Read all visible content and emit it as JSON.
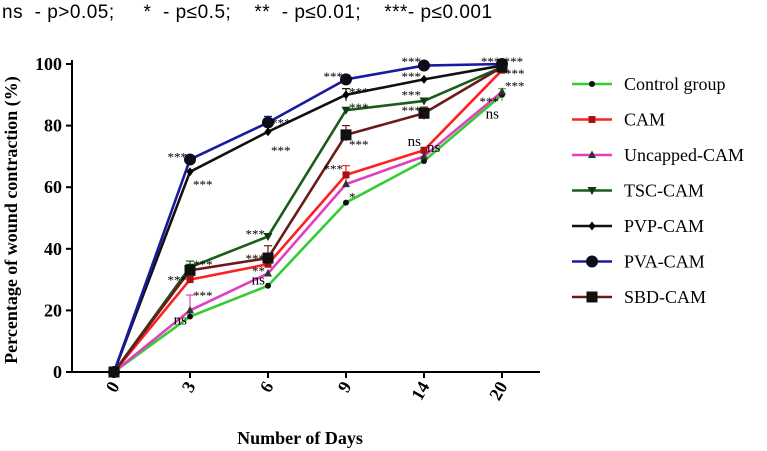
{
  "significance_note": "ns  - p>0.05;     *  - p≤0.5;    **  - p≤0.01;    ***- p≤0.001",
  "chart_data": {
    "type": "line",
    "title": "",
    "xlabel": "Number of Days",
    "ylabel": "Percentage of wound contraction (%)",
    "categories": [
      "0",
      "3",
      "6",
      "9",
      "14",
      "20"
    ],
    "ylim": [
      0,
      100
    ],
    "yticks": [
      0,
      20,
      40,
      60,
      80,
      100
    ],
    "legend_position": "right",
    "series": [
      {
        "name": "Control group",
        "color": "#33cc33",
        "marker": "dot",
        "values": [
          0,
          18,
          28,
          55,
          68.5,
          90
        ]
      },
      {
        "name": "CAM",
        "color": "#ff2020",
        "marker": "square-small",
        "values": [
          0,
          30,
          35,
          64,
          72,
          98
        ]
      },
      {
        "name": "Uncapped-CAM",
        "color": "#e040c0",
        "marker": "triangle-up",
        "values": [
          0,
          20,
          32,
          61,
          70,
          91
        ]
      },
      {
        "name": "TSC-CAM",
        "color": "#1a5c1a",
        "marker": "triangle-down",
        "values": [
          0,
          34,
          44,
          85,
          88,
          99
        ]
      },
      {
        "name": "PVP-CAM",
        "color": "#111111",
        "marker": "diamond",
        "values": [
          0,
          65,
          78,
          90,
          95,
          99.5
        ]
      },
      {
        "name": "PVA-CAM",
        "color": "#1a1aa0",
        "marker": "circle-big",
        "values": [
          0,
          69,
          81,
          95,
          99.5,
          100
        ]
      },
      {
        "name": "SBD-CAM",
        "color": "#6b1a1a",
        "marker": "square-big",
        "values": [
          0,
          33,
          37,
          77,
          84,
          99
        ]
      }
    ],
    "annotations": [
      {
        "text": "***",
        "x": "3",
        "y": 71,
        "side": "left"
      },
      {
        "text": "***",
        "x": "3",
        "y": 62,
        "side": "right"
      },
      {
        "text": "***",
        "x": "3",
        "y": 36,
        "side": "right"
      },
      {
        "text": "***",
        "x": "3",
        "y": 31,
        "side": "left"
      },
      {
        "text": "***",
        "x": "3",
        "y": 26,
        "side": "right"
      },
      {
        "text": "ns",
        "x": "3",
        "y": 17,
        "side": "left"
      },
      {
        "text": "***",
        "x": "6",
        "y": 82,
        "side": "right"
      },
      {
        "text": "***",
        "x": "6",
        "y": 73,
        "side": "right"
      },
      {
        "text": "***",
        "x": "6",
        "y": 46,
        "side": "left"
      },
      {
        "text": "***",
        "x": "6",
        "y": 38,
        "side": "left"
      },
      {
        "text": "**",
        "x": "6",
        "y": 34,
        "side": "left"
      },
      {
        "text": "ns",
        "x": "6",
        "y": 30,
        "side": "left"
      },
      {
        "text": "***",
        "x": "9",
        "y": 97,
        "side": "left"
      },
      {
        "text": "***",
        "x": "9",
        "y": 92,
        "side": "right"
      },
      {
        "text": "***",
        "x": "9",
        "y": 87,
        "side": "right"
      },
      {
        "text": "***",
        "x": "9",
        "y": 75,
        "side": "right"
      },
      {
        "text": "***",
        "x": "9",
        "y": 67,
        "side": "left"
      },
      {
        "text": "*",
        "x": "9",
        "y": 58,
        "side": "right"
      },
      {
        "text": "***",
        "x": "14",
        "y": 102,
        "side": "left"
      },
      {
        "text": "***",
        "x": "14",
        "y": 97,
        "side": "left"
      },
      {
        "text": "***",
        "x": "14",
        "y": 91,
        "side": "left"
      },
      {
        "text": "***",
        "x": "14",
        "y": 86,
        "side": "left"
      },
      {
        "text": "ns",
        "x": "14",
        "y": 75,
        "side": "left"
      },
      {
        "text": "ns",
        "x": "14",
        "y": 73,
        "side": "right"
      },
      {
        "text": "*** ***",
        "x": "20",
        "y": 102,
        "side": "center"
      },
      {
        "text": "***",
        "x": "20",
        "y": 98,
        "side": "right"
      },
      {
        "text": "***",
        "x": "20",
        "y": 94,
        "side": "right"
      },
      {
        "text": "***",
        "x": "20",
        "y": 89,
        "side": "left"
      },
      {
        "text": "ns",
        "x": "20",
        "y": 84,
        "side": "left"
      }
    ],
    "error_bars": [
      {
        "series": "Uncapped-CAM",
        "x": "3",
        "low": 18,
        "high": 25
      },
      {
        "series": "TSC-CAM",
        "x": "3",
        "low": 33,
        "high": 36
      },
      {
        "series": "CAM",
        "x": "3",
        "low": 29,
        "high": 31
      },
      {
        "series": "SBD-CAM",
        "x": "6",
        "low": 35,
        "high": 41
      },
      {
        "series": "PVA-CAM",
        "x": "6",
        "low": 79,
        "high": 83
      },
      {
        "series": "PVP-CAM",
        "x": "9",
        "low": 88,
        "high": 92
      },
      {
        "series": "CAM",
        "x": "9",
        "low": 61,
        "high": 67
      },
      {
        "series": "SBD-CAM",
        "x": "9",
        "low": 75,
        "high": 80
      },
      {
        "series": "SBD-CAM",
        "x": "14",
        "low": 82,
        "high": 86
      },
      {
        "series": "Control group",
        "x": "20",
        "low": 88,
        "high": 92
      }
    ]
  }
}
